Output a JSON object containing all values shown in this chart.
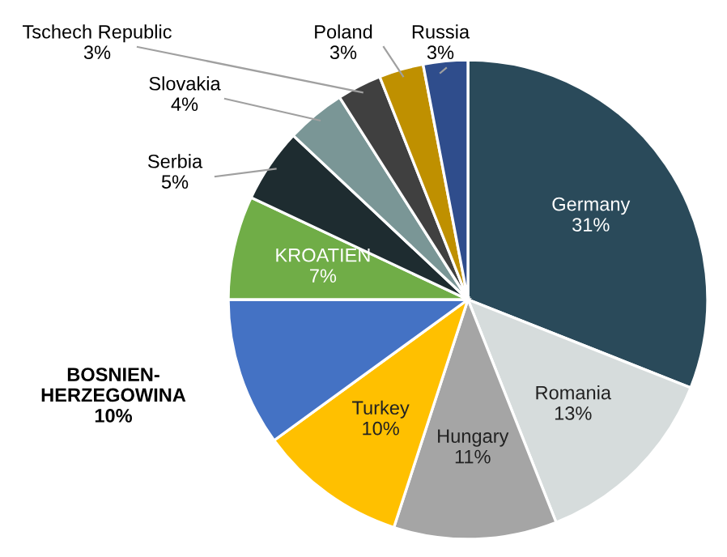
{
  "chart_data": {
    "type": "pie",
    "categories": [
      "Germany",
      "Romania",
      "Hungary",
      "Turkey",
      "BOSNIEN-HERZEGOWINA",
      "KROATIEN",
      "Serbia",
      "Slovakia",
      "Tschech Republic",
      "Poland",
      "Russia"
    ],
    "values": [
      31,
      13,
      11,
      10,
      10,
      7,
      5,
      4,
      3,
      3,
      3
    ],
    "value_labels": [
      "31%",
      "13%",
      "11%",
      "10%",
      "10%",
      "7%",
      "5%",
      "4%",
      "3%",
      "3%",
      "3%"
    ],
    "colors": [
      "#2a4a5a",
      "#d6dcdc",
      "#a5a5a5",
      "#ffc000",
      "#4472c4",
      "#70ad47",
      "#1e2c30",
      "#7a9696",
      "#404040",
      "#bf9000",
      "#2f4d8c"
    ],
    "legend": false
  }
}
